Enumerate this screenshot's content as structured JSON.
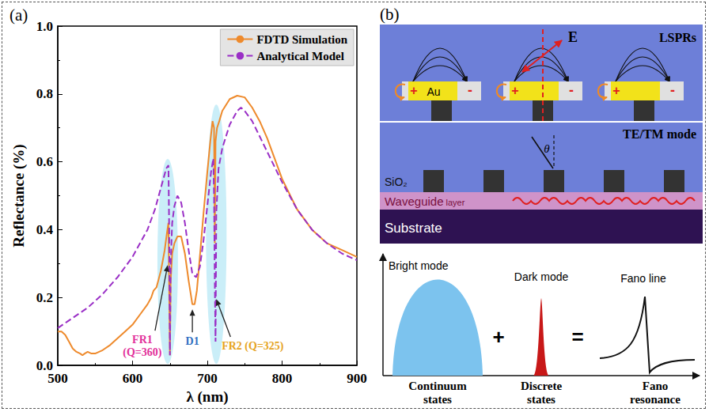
{
  "chart_data": {
    "type": "line",
    "title": "(a)",
    "x_label": "λ (nm)",
    "y_label": "Reflectance (%)",
    "xlim": [
      500,
      900
    ],
    "xticks": [
      500,
      600,
      700,
      800,
      900
    ],
    "ylim": [
      0,
      1
    ],
    "yticks": [
      {
        "value": 0,
        "label": "0.0"
      },
      0.2,
      0.4,
      0.6,
      0.8,
      {
        "value": 1,
        "label": "1.0"
      }
    ],
    "grid": false,
    "legend": "upper right",
    "series": [
      {
        "name": "FDTD Simulation",
        "color": "#ee8a2c",
        "line_style": "solid",
        "x": [
          500,
          505,
          510,
          515,
          520,
          525,
          530,
          533,
          536,
          540,
          545,
          550,
          560,
          570,
          580,
          590,
          600,
          610,
          620,
          625,
          628,
          632,
          638,
          643,
          646,
          648,
          649,
          650,
          651,
          653,
          656,
          660,
          665,
          670,
          675,
          680,
          683,
          686,
          690,
          695,
          700,
          704,
          707,
          709,
          710,
          711,
          713,
          716,
          720,
          730,
          740,
          750,
          760,
          770,
          780,
          790,
          800,
          820,
          840,
          860,
          880,
          900
        ],
        "values": [
          0.1,
          0.1,
          0.09,
          0.07,
          0.05,
          0.04,
          0.035,
          0.03,
          0.035,
          0.04,
          0.035,
          0.035,
          0.045,
          0.06,
          0.08,
          0.1,
          0.12,
          0.15,
          0.18,
          0.2,
          0.22,
          0.23,
          0.28,
          0.34,
          0.39,
          0.42,
          0.22,
          0.03,
          0.25,
          0.33,
          0.36,
          0.38,
          0.38,
          0.33,
          0.25,
          0.18,
          0.18,
          0.22,
          0.32,
          0.45,
          0.57,
          0.66,
          0.72,
          0.7,
          0.36,
          0.66,
          0.7,
          0.72,
          0.75,
          0.785,
          0.795,
          0.79,
          0.76,
          0.72,
          0.67,
          0.61,
          0.55,
          0.46,
          0.4,
          0.36,
          0.34,
          0.32
        ]
      },
      {
        "name": "Analytical Model",
        "color": "#9a2fc6",
        "line_style": "dashed",
        "x": [
          500,
          520,
          540,
          560,
          580,
          600,
          620,
          630,
          640,
          645,
          648,
          649,
          650,
          651,
          653,
          656,
          660,
          665,
          670,
          675,
          680,
          685,
          690,
          695,
          700,
          705,
          708,
          709,
          710,
          711,
          712,
          715,
          720,
          730,
          740,
          745,
          750,
          760,
          780,
          800,
          820,
          840,
          860,
          880,
          900
        ],
        "values": [
          0.11,
          0.14,
          0.17,
          0.21,
          0.26,
          0.32,
          0.4,
          0.46,
          0.54,
          0.58,
          0.59,
          0.4,
          0.03,
          0.3,
          0.42,
          0.47,
          0.5,
          0.48,
          0.42,
          0.34,
          0.27,
          0.26,
          0.29,
          0.37,
          0.47,
          0.57,
          0.61,
          0.5,
          0.25,
          0.07,
          0.45,
          0.58,
          0.64,
          0.71,
          0.75,
          0.76,
          0.75,
          0.72,
          0.63,
          0.54,
          0.46,
          0.4,
          0.36,
          0.33,
          0.31
        ]
      }
    ],
    "annotations": [
      {
        "text": [
          "FR1",
          "(Q=360)"
        ],
        "color": "#e2309a",
        "x": 647,
        "y": 0.3
      },
      {
        "text": [
          "D1"
        ],
        "color": "#2f6fc2",
        "x": 680,
        "y": 0.17
      },
      {
        "text": [
          "FR2 (Q=325)"
        ],
        "color": "#e6a41e",
        "x": 712,
        "y": 0.2
      }
    ]
  },
  "panel_b": {
    "label": "(b)",
    "lsprs": {
      "title": "LSPRs",
      "field": "E",
      "metal": "Au",
      "charges": [
        "+",
        "-"
      ]
    },
    "waveguide": {
      "title": "TE/TM mode",
      "angle": "θ",
      "grating": "SiO₂",
      "layer": [
        "Waveguide",
        "layer"
      ],
      "substrate": "Substrate"
    },
    "fano": {
      "bright": "Bright mode",
      "dark": "Dark mode",
      "result": "Fano line",
      "operators": [
        "+",
        "="
      ],
      "captions": [
        "Continuum states",
        "Discrete states",
        "Fano resonance"
      ]
    }
  }
}
